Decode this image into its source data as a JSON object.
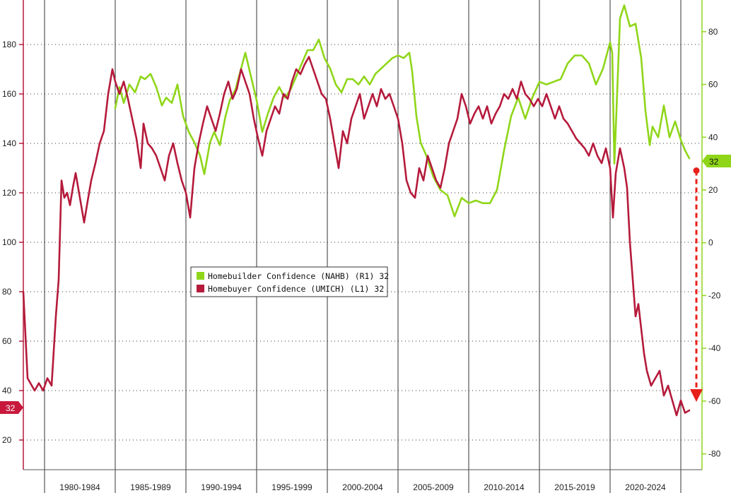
{
  "chart_data": {
    "type": "line",
    "title": "",
    "xlabel": "",
    "x_range": [
      1978.5,
      2026.5
    ],
    "x_tick_labels": [
      {
        "label": "1980-1984",
        "start": 1980,
        "end": 1985
      },
      {
        "label": "1985-1989",
        "start": 1985,
        "end": 1990
      },
      {
        "label": "1990-1994",
        "start": 1990,
        "end": 1995
      },
      {
        "label": "1995-1999",
        "start": 1995,
        "end": 2000
      },
      {
        "label": "2000-2004",
        "start": 2000,
        "end": 2005
      },
      {
        "label": "2005-2009",
        "start": 2005,
        "end": 2010
      },
      {
        "label": "2010-2014",
        "start": 2010,
        "end": 2015
      },
      {
        "label": "2015-2019",
        "start": 2015,
        "end": 2020
      },
      {
        "label": "2020-2024",
        "start": 2020,
        "end": 2025
      }
    ],
    "left_axis": {
      "ticks": [
        20,
        40,
        60,
        80,
        100,
        120,
        140,
        160,
        180
      ],
      "range": [
        8,
        198
      ]
    },
    "right_axis": {
      "ticks": [
        -80,
        -60,
        -40,
        -20,
        0,
        20,
        40,
        60,
        80
      ],
      "range": [
        -86,
        92
      ]
    },
    "grid": true,
    "legend_position": "center-left",
    "series": [
      {
        "name": "Homebuilder Confidence (NAHB) (R1) 32",
        "axis": "right",
        "color": "#8fd619",
        "last_value": "32",
        "points": [
          [
            1985.0,
            51
          ],
          [
            1985.3,
            59
          ],
          [
            1985.6,
            53
          ],
          [
            1986.0,
            60
          ],
          [
            1986.4,
            57
          ],
          [
            1986.8,
            63
          ],
          [
            1987.1,
            62
          ],
          [
            1987.5,
            64
          ],
          [
            1987.9,
            59
          ],
          [
            1988.3,
            52
          ],
          [
            1988.6,
            55
          ],
          [
            1989.0,
            53
          ],
          [
            1989.4,
            60
          ],
          [
            1989.8,
            48
          ],
          [
            1990.2,
            42
          ],
          [
            1990.6,
            38
          ],
          [
            1991.0,
            33
          ],
          [
            1991.3,
            26
          ],
          [
            1991.7,
            38
          ],
          [
            1992.0,
            42
          ],
          [
            1992.4,
            37
          ],
          [
            1992.8,
            48
          ],
          [
            1993.1,
            54
          ],
          [
            1993.5,
            58
          ],
          [
            1993.9,
            66
          ],
          [
            1994.2,
            72
          ],
          [
            1994.6,
            63
          ],
          [
            1995.0,
            54
          ],
          [
            1995.4,
            42
          ],
          [
            1995.8,
            49
          ],
          [
            1996.2,
            55
          ],
          [
            1996.6,
            59
          ],
          [
            1997.0,
            55
          ],
          [
            1997.4,
            58
          ],
          [
            1997.8,
            63
          ],
          [
            1998.2,
            68
          ],
          [
            1998.6,
            73
          ],
          [
            1999.0,
            73
          ],
          [
            1999.4,
            77
          ],
          [
            1999.8,
            70
          ],
          [
            2000.2,
            66
          ],
          [
            2000.6,
            60
          ],
          [
            2001.0,
            57
          ],
          [
            2001.4,
            62
          ],
          [
            2001.8,
            62
          ],
          [
            2002.2,
            60
          ],
          [
            2002.6,
            63
          ],
          [
            2003.0,
            60
          ],
          [
            2003.4,
            64
          ],
          [
            2003.8,
            66
          ],
          [
            2004.2,
            68
          ],
          [
            2004.6,
            70
          ],
          [
            2005.0,
            71
          ],
          [
            2005.4,
            70
          ],
          [
            2005.8,
            72
          ],
          [
            2006.0,
            65
          ],
          [
            2006.3,
            48
          ],
          [
            2006.6,
            38
          ],
          [
            2007.0,
            33
          ],
          [
            2007.5,
            25
          ],
          [
            2008.0,
            20
          ],
          [
            2008.5,
            18
          ],
          [
            2009.0,
            10
          ],
          [
            2009.5,
            17
          ],
          [
            2010.0,
            15
          ],
          [
            2010.5,
            16
          ],
          [
            2011.0,
            15
          ],
          [
            2011.5,
            15
          ],
          [
            2012.0,
            20
          ],
          [
            2012.5,
            35
          ],
          [
            2013.0,
            48
          ],
          [
            2013.5,
            55
          ],
          [
            2014.0,
            47
          ],
          [
            2014.5,
            55
          ],
          [
            2015.0,
            61
          ],
          [
            2015.5,
            60
          ],
          [
            2016.0,
            61
          ],
          [
            2016.5,
            62
          ],
          [
            2017.0,
            68
          ],
          [
            2017.5,
            71
          ],
          [
            2018.0,
            71
          ],
          [
            2018.5,
            68
          ],
          [
            2019.0,
            60
          ],
          [
            2019.5,
            66
          ],
          [
            2020.0,
            76
          ],
          [
            2020.15,
            72
          ],
          [
            2020.3,
            30
          ],
          [
            2020.45,
            50
          ],
          [
            2020.7,
            85
          ],
          [
            2021.0,
            90
          ],
          [
            2021.4,
            82
          ],
          [
            2021.8,
            83
          ],
          [
            2022.2,
            70
          ],
          [
            2022.5,
            50
          ],
          [
            2022.8,
            37
          ],
          [
            2023.0,
            44
          ],
          [
            2023.4,
            40
          ],
          [
            2023.8,
            52
          ],
          [
            2024.2,
            40
          ],
          [
            2024.6,
            46
          ],
          [
            2025.0,
            39
          ],
          [
            2025.3,
            35
          ],
          [
            2025.6,
            32
          ]
        ]
      },
      {
        "name": "Homebuyer Confidence (UMICH) (L1) 32",
        "axis": "left",
        "color": "#b51a3b",
        "last_value": "32",
        "points": [
          [
            1978.5,
            80
          ],
          [
            1978.8,
            45
          ],
          [
            1979.0,
            43
          ],
          [
            1979.3,
            40
          ],
          [
            1979.6,
            43
          ],
          [
            1979.9,
            40
          ],
          [
            1980.2,
            45
          ],
          [
            1980.5,
            42
          ],
          [
            1980.8,
            70
          ],
          [
            1981.0,
            85
          ],
          [
            1981.2,
            125
          ],
          [
            1981.4,
            118
          ],
          [
            1981.6,
            120
          ],
          [
            1981.8,
            115
          ],
          [
            1982.0,
            122
          ],
          [
            1982.2,
            128
          ],
          [
            1982.5,
            118
          ],
          [
            1982.8,
            108
          ],
          [
            1983.0,
            115
          ],
          [
            1983.3,
            125
          ],
          [
            1983.6,
            132
          ],
          [
            1983.9,
            140
          ],
          [
            1984.2,
            145
          ],
          [
            1984.5,
            160
          ],
          [
            1984.8,
            170
          ],
          [
            1985.0,
            165
          ],
          [
            1985.3,
            160
          ],
          [
            1985.6,
            165
          ],
          [
            1985.9,
            158
          ],
          [
            1986.2,
            150
          ],
          [
            1986.5,
            142
          ],
          [
            1986.8,
            130
          ],
          [
            1987.0,
            148
          ],
          [
            1987.3,
            140
          ],
          [
            1987.6,
            138
          ],
          [
            1987.9,
            135
          ],
          [
            1988.2,
            130
          ],
          [
            1988.5,
            125
          ],
          [
            1988.8,
            135
          ],
          [
            1989.1,
            140
          ],
          [
            1989.4,
            132
          ],
          [
            1989.7,
            125
          ],
          [
            1990.0,
            120
          ],
          [
            1990.3,
            110
          ],
          [
            1990.6,
            130
          ],
          [
            1990.9,
            140
          ],
          [
            1991.2,
            148
          ],
          [
            1991.5,
            155
          ],
          [
            1991.8,
            150
          ],
          [
            1992.1,
            145
          ],
          [
            1992.4,
            152
          ],
          [
            1992.7,
            160
          ],
          [
            1993.0,
            165
          ],
          [
            1993.3,
            158
          ],
          [
            1993.6,
            162
          ],
          [
            1993.9,
            170
          ],
          [
            1994.2,
            165
          ],
          [
            1994.5,
            160
          ],
          [
            1994.8,
            150
          ],
          [
            1995.1,
            142
          ],
          [
            1995.4,
            135
          ],
          [
            1995.7,
            145
          ],
          [
            1996.0,
            150
          ],
          [
            1996.3,
            155
          ],
          [
            1996.6,
            152
          ],
          [
            1996.9,
            160
          ],
          [
            1997.2,
            158
          ],
          [
            1997.5,
            165
          ],
          [
            1997.8,
            170
          ],
          [
            1998.1,
            168
          ],
          [
            1998.4,
            172
          ],
          [
            1998.7,
            175
          ],
          [
            1999.0,
            170
          ],
          [
            1999.3,
            165
          ],
          [
            1999.6,
            160
          ],
          [
            1999.9,
            158
          ],
          [
            2000.2,
            150
          ],
          [
            2000.5,
            140
          ],
          [
            2000.8,
            130
          ],
          [
            2001.1,
            145
          ],
          [
            2001.4,
            140
          ],
          [
            2001.7,
            150
          ],
          [
            2002.0,
            155
          ],
          [
            2002.3,
            160
          ],
          [
            2002.6,
            150
          ],
          [
            2002.9,
            155
          ],
          [
            2003.2,
            160
          ],
          [
            2003.5,
            155
          ],
          [
            2003.8,
            162
          ],
          [
            2004.1,
            158
          ],
          [
            2004.4,
            160
          ],
          [
            2004.7,
            155
          ],
          [
            2005.0,
            150
          ],
          [
            2005.3,
            140
          ],
          [
            2005.6,
            125
          ],
          [
            2005.9,
            120
          ],
          [
            2006.2,
            118
          ],
          [
            2006.5,
            130
          ],
          [
            2006.8,
            125
          ],
          [
            2007.1,
            135
          ],
          [
            2007.4,
            130
          ],
          [
            2007.7,
            125
          ],
          [
            2008.0,
            122
          ],
          [
            2008.3,
            130
          ],
          [
            2008.6,
            140
          ],
          [
            2008.9,
            145
          ],
          [
            2009.2,
            150
          ],
          [
            2009.5,
            160
          ],
          [
            2009.8,
            155
          ],
          [
            2010.1,
            148
          ],
          [
            2010.4,
            152
          ],
          [
            2010.7,
            155
          ],
          [
            2011.0,
            150
          ],
          [
            2011.3,
            155
          ],
          [
            2011.6,
            148
          ],
          [
            2011.9,
            152
          ],
          [
            2012.2,
            155
          ],
          [
            2012.5,
            160
          ],
          [
            2012.8,
            158
          ],
          [
            2013.1,
            162
          ],
          [
            2013.4,
            158
          ],
          [
            2013.7,
            165
          ],
          [
            2014.0,
            160
          ],
          [
            2014.3,
            158
          ],
          [
            2014.6,
            155
          ],
          [
            2014.9,
            158
          ],
          [
            2015.2,
            155
          ],
          [
            2015.5,
            160
          ],
          [
            2015.8,
            155
          ],
          [
            2016.1,
            150
          ],
          [
            2016.4,
            155
          ],
          [
            2016.7,
            150
          ],
          [
            2017.0,
            148
          ],
          [
            2017.3,
            145
          ],
          [
            2017.6,
            142
          ],
          [
            2017.9,
            140
          ],
          [
            2018.2,
            138
          ],
          [
            2018.5,
            135
          ],
          [
            2018.8,
            140
          ],
          [
            2019.1,
            135
          ],
          [
            2019.4,
            132
          ],
          [
            2019.7,
            138
          ],
          [
            2020.0,
            130
          ],
          [
            2020.2,
            110
          ],
          [
            2020.4,
            128
          ],
          [
            2020.7,
            138
          ],
          [
            2021.0,
            130
          ],
          [
            2021.2,
            122
          ],
          [
            2021.4,
            100
          ],
          [
            2021.6,
            85
          ],
          [
            2021.8,
            70
          ],
          [
            2022.0,
            75
          ],
          [
            2022.2,
            65
          ],
          [
            2022.4,
            55
          ],
          [
            2022.6,
            48
          ],
          [
            2022.9,
            42
          ],
          [
            2023.2,
            45
          ],
          [
            2023.5,
            48
          ],
          [
            2023.8,
            38
          ],
          [
            2024.1,
            42
          ],
          [
            2024.4,
            36
          ],
          [
            2024.7,
            30
          ],
          [
            2025.0,
            36
          ],
          [
            2025.3,
            31
          ],
          [
            2025.6,
            32
          ]
        ]
      }
    ],
    "annotations": [
      {
        "type": "arrow",
        "style": "dashed",
        "color": "#e8201a",
        "from": [
          2026.1,
          129
        ],
        "to": [
          2026.1,
          36
        ]
      }
    ]
  },
  "legend": {
    "items": [
      {
        "label": "Homebuilder Confidence (NAHB) (R1) 32",
        "color": "#8fd619"
      },
      {
        "label": "Homebuyer Confidence (UMICH) (L1) 32",
        "color": "#b51a3b"
      }
    ]
  },
  "badges": {
    "left": {
      "value": "32",
      "color": "#c8193d"
    },
    "right": {
      "value": "32",
      "color": "#8fd619"
    }
  }
}
